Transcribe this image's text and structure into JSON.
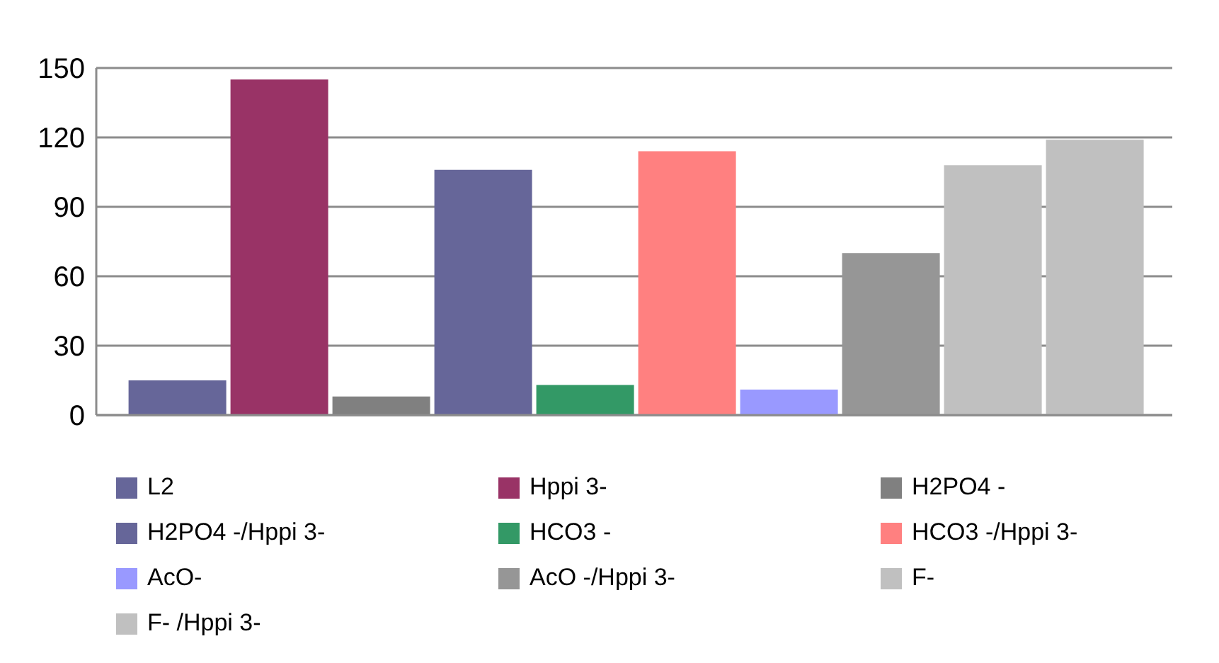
{
  "chart_data": {
    "type": "bar",
    "categories": [
      null
    ],
    "series": [
      {
        "name": "L2",
        "color": "#666699",
        "values": [
          15
        ]
      },
      {
        "name": "Hppi 3-",
        "color": "#993366",
        "values": [
          145
        ]
      },
      {
        "name": "H2PO4 -",
        "color": "#808080",
        "values": [
          8
        ]
      },
      {
        "name": "H2PO4 -/Hppi 3-",
        "color": "#666699",
        "values": [
          106
        ]
      },
      {
        "name": "HCO3 -",
        "color": "#339966",
        "values": [
          13
        ]
      },
      {
        "name": "HCO3 -/Hppi 3-",
        "color": "#ff8080",
        "values": [
          114
        ]
      },
      {
        "name": "AcO-",
        "color": "#9999ff",
        "values": [
          11
        ]
      },
      {
        "name": "AcO -/Hppi 3-",
        "color": "#969696",
        "values": [
          70
        ]
      },
      {
        "name": "F-",
        "color": "#c0c0c0",
        "values": [
          108
        ]
      },
      {
        "name": "F- /Hppi 3-",
        "color": "#c0c0c0",
        "values": [
          119
        ]
      }
    ],
    "ylim": [
      0,
      150
    ],
    "yticks": [
      0,
      30,
      60,
      90,
      120,
      150
    ],
    "grid": "y",
    "legend": "bottom"
  }
}
